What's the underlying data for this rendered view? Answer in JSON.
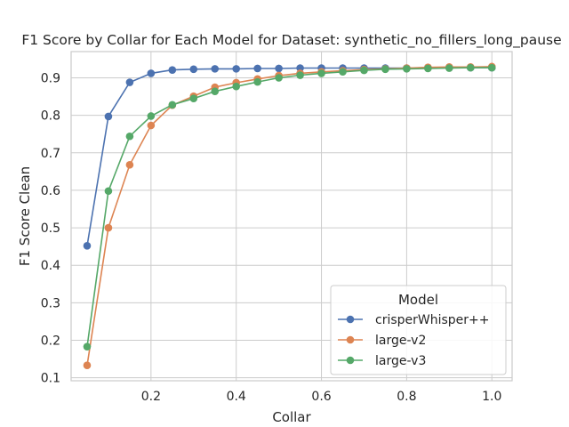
{
  "chart_data": {
    "type": "line",
    "title": "F1 Score by Collar for Each Model for Dataset: synthetic_no_fillers_long_pause",
    "xlabel": "Collar",
    "ylabel": "F1 Score Clean",
    "xlim": [
      0.0125,
      1.0475
    ],
    "ylim": [
      0.092,
      0.97
    ],
    "xticks": [
      0.2,
      0.4,
      0.6,
      0.8,
      1.0
    ],
    "xtick_labels": [
      "0.2",
      "0.4",
      "0.6",
      "0.8",
      "1.0"
    ],
    "yticks": [
      0.1,
      0.2,
      0.3,
      0.4,
      0.5,
      0.6,
      0.7,
      0.8,
      0.9
    ],
    "ytick_labels": [
      "0.1",
      "0.2",
      "0.3",
      "0.4",
      "0.5",
      "0.6",
      "0.7",
      "0.8",
      "0.9"
    ],
    "grid": true,
    "legend": {
      "title": "Model",
      "placement": "lower-right"
    },
    "x": [
      0.05,
      0.1,
      0.15,
      0.2,
      0.25,
      0.3,
      0.35,
      0.4,
      0.45,
      0.5,
      0.55,
      0.6,
      0.65,
      0.7,
      0.75,
      0.8,
      0.85,
      0.9,
      0.95,
      1.0
    ],
    "series": [
      {
        "name": "crisperWhisper++",
        "color": "#4c72b0",
        "values": [
          0.452,
          0.797,
          0.888,
          0.912,
          0.921,
          0.923,
          0.924,
          0.924,
          0.925,
          0.925,
          0.926,
          0.926,
          0.926,
          0.926,
          0.926,
          0.926,
          0.927,
          0.927,
          0.927,
          0.927
        ]
      },
      {
        "name": "large-v2",
        "color": "#dd8452",
        "values": [
          0.133,
          0.5,
          0.668,
          0.773,
          0.827,
          0.851,
          0.875,
          0.887,
          0.897,
          0.906,
          0.912,
          0.916,
          0.919,
          0.922,
          0.924,
          0.926,
          0.928,
          0.929,
          0.929,
          0.93
        ]
      },
      {
        "name": "large-v3",
        "color": "#55a868",
        "values": [
          0.183,
          0.598,
          0.744,
          0.798,
          0.828,
          0.845,
          0.864,
          0.877,
          0.889,
          0.9,
          0.907,
          0.912,
          0.916,
          0.92,
          0.923,
          0.924,
          0.925,
          0.926,
          0.927,
          0.927
        ]
      }
    ]
  }
}
